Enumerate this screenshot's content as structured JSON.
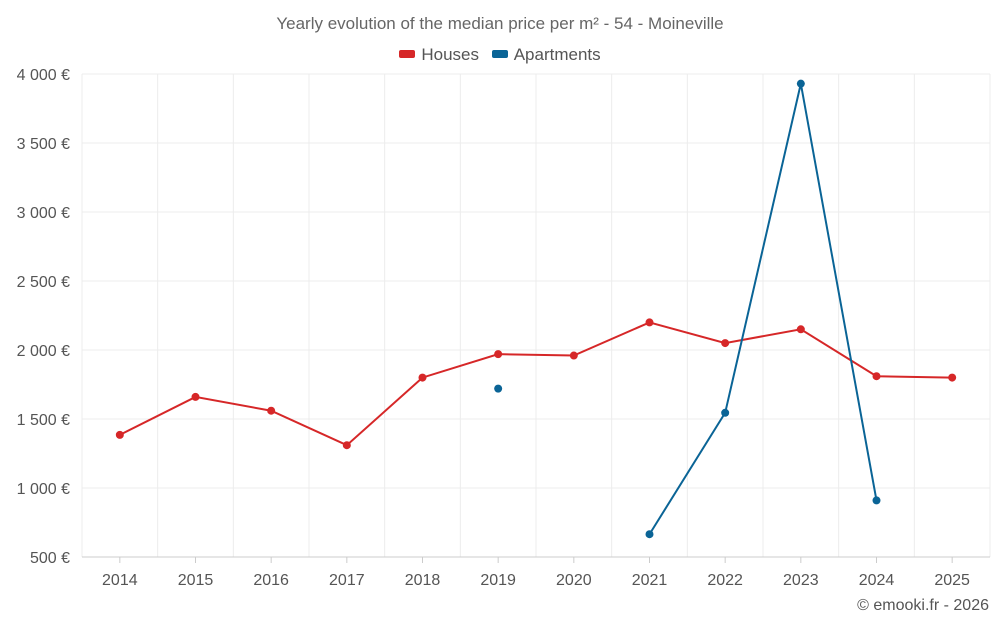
{
  "chart_data": {
    "type": "line",
    "title": "Yearly evolution of the median price per m² - 54 - Moineville",
    "categories": [
      "2014",
      "2015",
      "2016",
      "2017",
      "2018",
      "2019",
      "2020",
      "2021",
      "2022",
      "2023",
      "2024",
      "2025"
    ],
    "ylim": [
      500,
      4000
    ],
    "yticks": [
      500,
      1000,
      1500,
      2000,
      2500,
      3000,
      3500,
      4000
    ],
    "ytick_labels": [
      "500 €",
      "1 000 €",
      "1 500 €",
      "2 000 €",
      "2 500 €",
      "3 000 €",
      "3 500 €",
      "4 000 €"
    ],
    "grid": true,
    "legend_position": "top-center",
    "series": [
      {
        "name": "Houses",
        "color": "#d62728",
        "values": [
          1385,
          1660,
          1560,
          1310,
          1800,
          1970,
          1960,
          2200,
          2050,
          2150,
          1810,
          1800
        ]
      },
      {
        "name": "Apartments",
        "color": "#0a6496",
        "values": [
          null,
          null,
          null,
          null,
          null,
          1720,
          null,
          665,
          1545,
          3930,
          910,
          null
        ]
      }
    ]
  },
  "footer": "© emooki.fr - 2026"
}
